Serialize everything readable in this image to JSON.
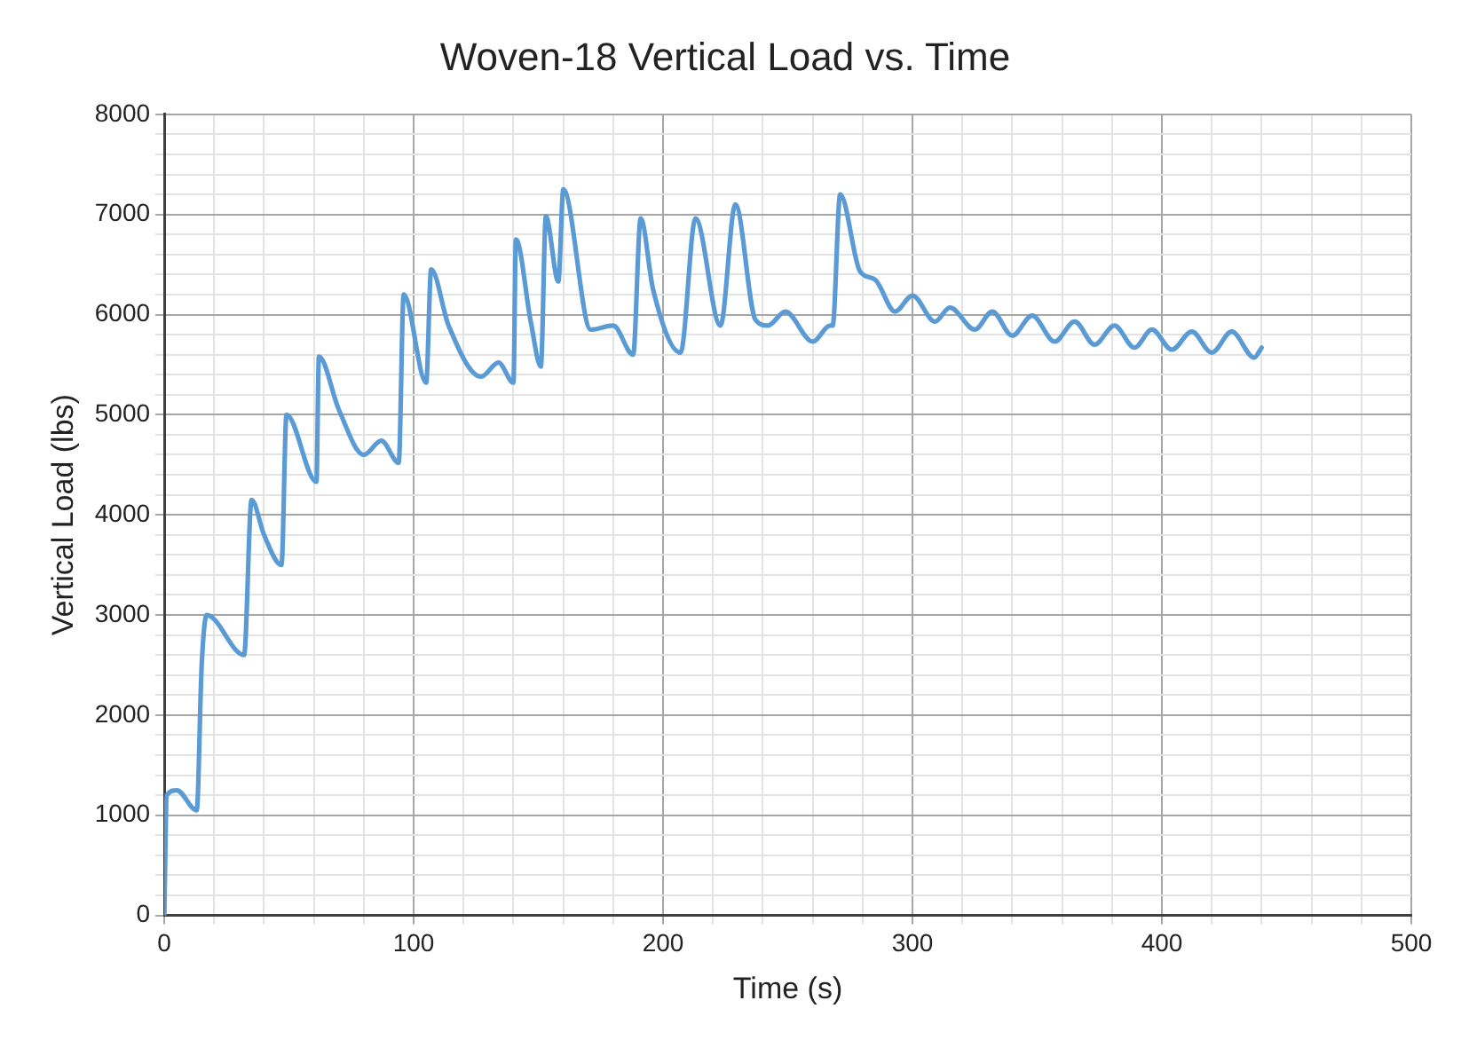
{
  "chart_data": {
    "type": "line",
    "title": "Woven-18 Vertical Load vs. Time",
    "xlabel": "Time (s)",
    "ylabel": "Vertical Load (lbs)",
    "xlim": [
      0,
      500
    ],
    "ylim": [
      0,
      8000
    ],
    "xticks": [
      0,
      {
        "value": 20,
        "label": null
      },
      {
        "value": 40,
        "label": null
      },
      {
        "value": 60,
        "label": null
      },
      {
        "value": 80,
        "label": null
      },
      100,
      {
        "value": 120,
        "label": null
      },
      {
        "value": 140,
        "label": null
      },
      {
        "value": 160,
        "label": null
      },
      {
        "value": 180,
        "label": null
      },
      200,
      {
        "value": 220,
        "label": null
      },
      {
        "value": 240,
        "label": null
      },
      {
        "value": 260,
        "label": null
      },
      {
        "value": 280,
        "label": null
      },
      300,
      {
        "value": 320,
        "label": null
      },
      {
        "value": 340,
        "label": null
      },
      {
        "value": 360,
        "label": null
      },
      {
        "value": 380,
        "label": null
      },
      400,
      {
        "value": 420,
        "label": null
      },
      {
        "value": 440,
        "label": null
      },
      {
        "value": 460,
        "label": null
      },
      {
        "value": 480,
        "label": null
      },
      500
    ],
    "yticks": [
      0,
      {
        "value": 200,
        "label": null
      },
      {
        "value": 400,
        "label": null
      },
      {
        "value": 600,
        "label": null
      },
      {
        "value": 800,
        "label": null
      },
      1000,
      {
        "value": 1200,
        "label": null
      },
      {
        "value": 1400,
        "label": null
      },
      {
        "value": 1600,
        "label": null
      },
      {
        "value": 1800,
        "label": null
      },
      2000,
      {
        "value": 2200,
        "label": null
      },
      {
        "value": 2400,
        "label": null
      },
      {
        "value": 2600,
        "label": null
      },
      {
        "value": 2800,
        "label": null
      },
      3000,
      {
        "value": 3200,
        "label": null
      },
      {
        "value": 3400,
        "label": null
      },
      {
        "value": 3600,
        "label": null
      },
      {
        "value": 3800,
        "label": null
      },
      4000,
      {
        "value": 4200,
        "label": null
      },
      {
        "value": 4400,
        "label": null
      },
      {
        "value": 4600,
        "label": null
      },
      {
        "value": 4800,
        "label": null
      },
      5000,
      {
        "value": 5200,
        "label": null
      },
      {
        "value": 5400,
        "label": null
      },
      {
        "value": 5600,
        "label": null
      },
      {
        "value": 5800,
        "label": null
      },
      6000,
      {
        "value": 6200,
        "label": null
      },
      {
        "value": 6400,
        "label": null
      },
      {
        "value": 6600,
        "label": null
      },
      {
        "value": 6800,
        "label": null
      },
      7000,
      {
        "value": 7200,
        "label": null
      },
      {
        "value": 7400,
        "label": null
      },
      {
        "value": 7600,
        "label": null
      },
      {
        "value": 7800,
        "label": null
      },
      8000
    ],
    "grid": true,
    "marker": "none",
    "line_style": "solid",
    "series": [
      {
        "color": "#5b9bd5",
        "x": [
          0,
          1,
          5,
          13,
          15,
          17,
          32,
          35,
          40,
          47,
          49,
          61,
          62,
          70,
          80,
          87,
          94,
          96,
          105,
          107,
          114,
          127,
          134,
          140,
          141,
          147,
          151,
          153,
          158,
          160,
          171,
          180,
          188,
          191,
          196,
          207,
          213,
          223,
          229,
          237,
          242,
          249,
          260,
          267,
          268,
          271,
          279,
          285,
          293,
          300,
          309,
          315,
          325,
          332,
          340,
          348,
          357,
          365,
          373,
          381,
          389,
          396,
          404,
          412,
          420,
          428,
          437,
          440
        ],
        "values": [
          0,
          1200,
          1250,
          1050,
          2500,
          3000,
          2600,
          4150,
          3800,
          3500,
          5000,
          4330,
          5580,
          5050,
          4600,
          4740,
          4520,
          6200,
          5320,
          6450,
          5890,
          5380,
          5520,
          5320,
          6750,
          5920,
          5480,
          6980,
          6330,
          7250,
          5850,
          5890,
          5600,
          6960,
          6250,
          5620,
          6960,
          5890,
          7100,
          5950,
          5890,
          6030,
          5730,
          5890,
          5890,
          7200,
          6430,
          6350,
          6030,
          6190,
          5930,
          6070,
          5850,
          6030,
          5790,
          5990,
          5730,
          5930,
          5700,
          5890,
          5670,
          5850,
          5650,
          5830,
          5620,
          5830,
          5570,
          5670
        ]
      }
    ]
  }
}
